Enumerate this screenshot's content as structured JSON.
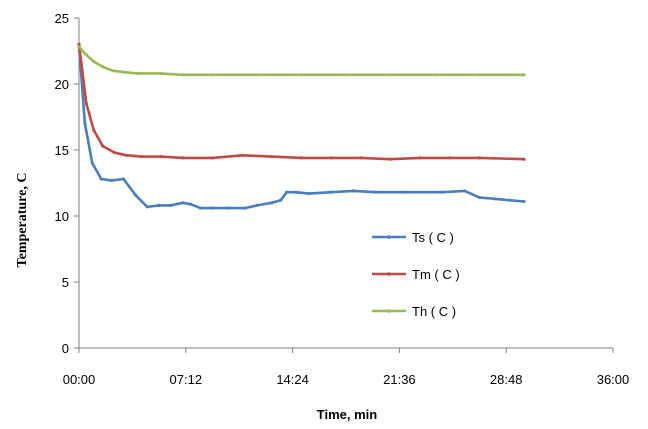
{
  "chart_data": {
    "type": "line",
    "xlabel": "Time, min",
    "ylabel": "Temperature, C",
    "x_range_min": [
      0,
      36
    ],
    "ylim": [
      0,
      25
    ],
    "x_ticks": [
      "00:00",
      "07:12",
      "14:24",
      "21:36",
      "28:48",
      "36:00"
    ],
    "y_ticks": [
      "0",
      "5",
      "10",
      "15",
      "20",
      "25"
    ],
    "grid": false,
    "legend_position": "center-right",
    "series": [
      {
        "name": "Ts ( C )",
        "color": "#4a7ebb",
        "x_min": [
          0,
          0.4,
          0.9,
          1.5,
          2.2,
          3.0,
          3.8,
          4.6,
          5.4,
          6.2,
          7.0,
          7.5,
          8.2,
          9.0,
          10.0,
          11.2,
          12.0,
          13.0,
          13.6,
          14.0,
          14.6,
          15.5,
          17.0,
          18.5,
          20.0,
          22.0,
          24.5,
          26.0,
          27.0,
          28.0,
          29.0,
          30.0
        ],
        "values": [
          23.0,
          17.0,
          14.0,
          12.8,
          12.7,
          12.8,
          11.6,
          10.7,
          10.8,
          10.8,
          11.0,
          10.9,
          10.6,
          10.6,
          10.6,
          10.6,
          10.8,
          11.0,
          11.2,
          11.8,
          11.8,
          11.7,
          11.8,
          11.9,
          11.8,
          11.8,
          11.8,
          11.9,
          11.4,
          11.3,
          11.2,
          11.1
        ]
      },
      {
        "name": "Tm ( C )",
        "color": "#be4b48",
        "x_min": [
          0,
          0.5,
          1.0,
          1.6,
          2.4,
          3.2,
          4.2,
          5.5,
          7.0,
          9.0,
          11.0,
          13.0,
          15.0,
          17.0,
          19.0,
          21.0,
          23.0,
          25.0,
          27.0,
          30.0
        ],
        "values": [
          23.0,
          18.5,
          16.5,
          15.3,
          14.8,
          14.6,
          14.5,
          14.5,
          14.4,
          14.4,
          14.6,
          14.5,
          14.4,
          14.4,
          14.4,
          14.3,
          14.4,
          14.4,
          14.4,
          14.3
        ]
      },
      {
        "name": "Th ( C )",
        "color": "#98b954",
        "x_min": [
          0,
          0.5,
          1.0,
          1.6,
          2.3,
          3.0,
          4.0,
          5.5,
          7.0,
          9.0,
          12.0,
          15.0,
          18.0,
          21.0,
          24.0,
          27.0,
          30.0
        ],
        "values": [
          22.8,
          22.2,
          21.7,
          21.3,
          21.0,
          20.9,
          20.8,
          20.8,
          20.7,
          20.7,
          20.7,
          20.7,
          20.7,
          20.7,
          20.7,
          20.7,
          20.7
        ]
      }
    ]
  }
}
